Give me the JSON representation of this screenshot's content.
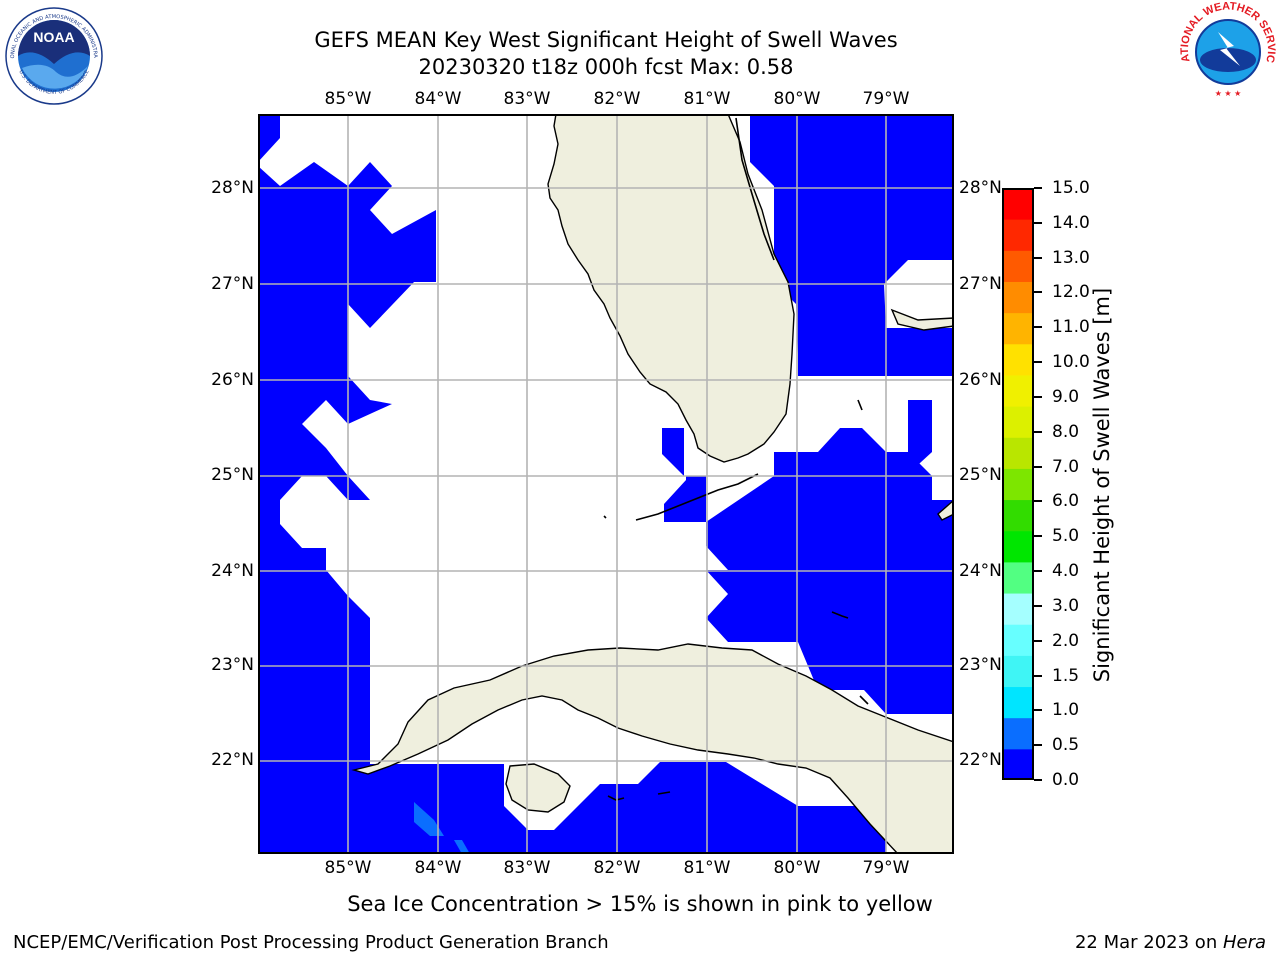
{
  "title": {
    "line1": "GEFS MEAN Key West Significant Height of Swell Waves",
    "line2": "20230320 t18z 000h fcst   Max: 0.58"
  },
  "map": {
    "projection": "PlateCarree",
    "lon_range": [
      -86.0,
      -78.3
    ],
    "lat_range": [
      21.0,
      28.8
    ],
    "lon_ticks": [
      "85°W",
      "84°W",
      "83°W",
      "82°W",
      "81°W",
      "80°W",
      "79°W"
    ],
    "lat_ticks": [
      "28°N",
      "27°N",
      "26°N",
      "25°N",
      "24°N",
      "23°N",
      "22°N"
    ],
    "colors": {
      "land": "#efefde",
      "ocean_masked": "#ffffff",
      "grid": "#b4b4b4",
      "coast": "#000000"
    }
  },
  "colorbar": {
    "label": "Significant Height of Swell Waves [m]",
    "ticks": [
      "0.0",
      "0.5",
      "1.0",
      "1.5",
      "2.0",
      "3.0",
      "4.0",
      "5.0",
      "6.0",
      "7.0",
      "8.0",
      "9.0",
      "10.0",
      "11.0",
      "12.0",
      "13.0",
      "14.0",
      "15.0"
    ],
    "colors": [
      "#0000ff",
      "#0a6eff",
      "#00e5ff",
      "#3ff5f5",
      "#67ffff",
      "#a5ffff",
      "#52ff82",
      "#00e600",
      "#32dc00",
      "#7de600",
      "#b9e600",
      "#dcf000",
      "#f0f000",
      "#ffe100",
      "#ffb400",
      "#ff8c00",
      "#ff5a00",
      "#ff2800",
      "#ff0000"
    ]
  },
  "note": "Sea Ice Concentration > 15% is shown in pink to yellow",
  "footer": {
    "left": "NCEP/EMC/Verification Post Processing Product Generation Branch",
    "date": "22 Mar 2023 on ",
    "machine": "Hera"
  },
  "logos": {
    "noaa_text": "NOAA",
    "noaa_ring": "NATIONAL OCEANIC AND ATMOSPHERIC ADMINISTRATION",
    "noaa_ring_bottom": "U.S. DEPARTMENT OF COMMERCE",
    "nws_ring": "NATIONAL WEATHER SERVICE"
  }
}
